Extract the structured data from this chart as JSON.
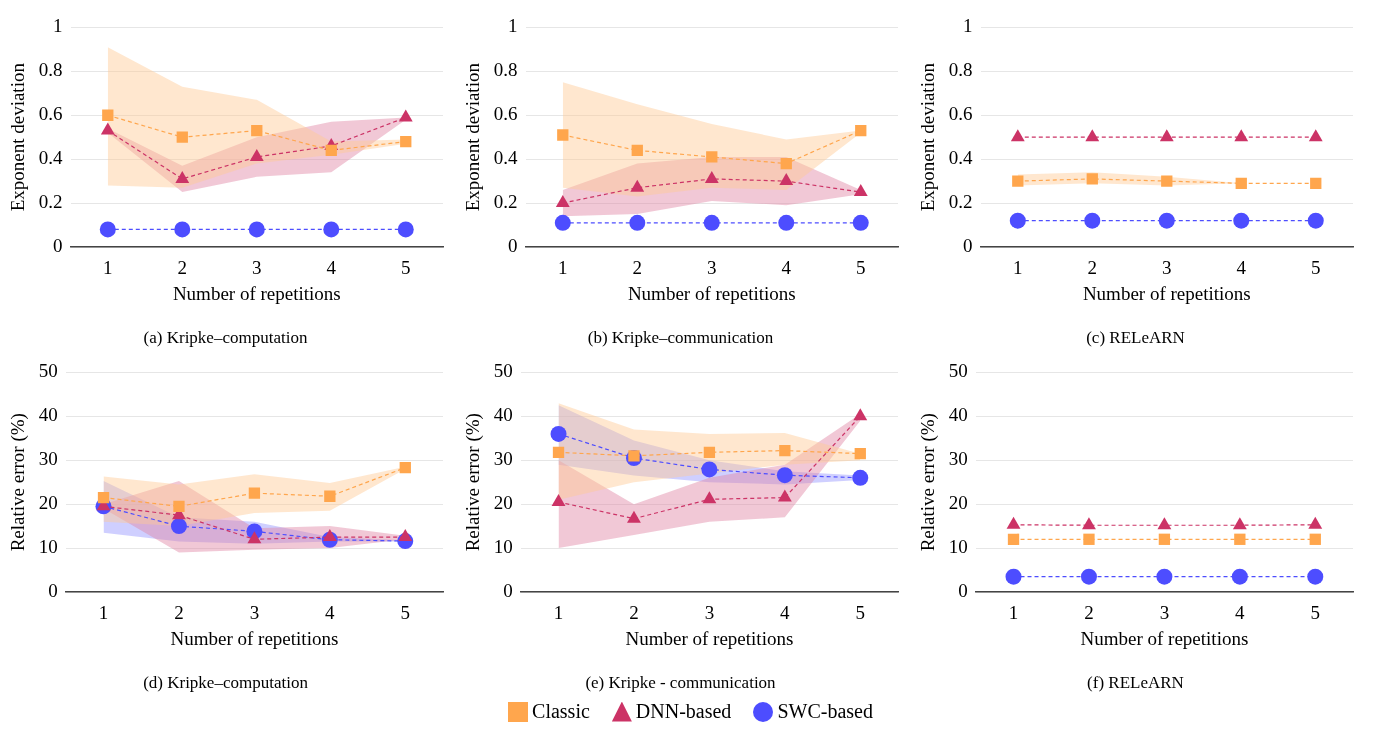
{
  "chart_data": [
    {
      "type": "line",
      "title": "(a) Kripke–computation",
      "xlabel": "Number of repetitions",
      "ylabel": "Exponent deviation",
      "categories": [
        "1",
        "2",
        "3",
        "4",
        "5"
      ],
      "ylim": [
        0,
        1
      ],
      "yticks": [
        0,
        0.2,
        0.4,
        0.6,
        0.8,
        1
      ],
      "grid": "y",
      "line_style": "dashed",
      "series": [
        {
          "color": "#ffa64d",
          "marker": "square",
          "values": [
            0.6,
            0.5,
            0.53,
            0.44,
            0.48
          ],
          "lower": [
            0.28,
            0.27,
            0.38,
            0.42,
            0.47
          ],
          "upper": [
            0.91,
            0.73,
            0.67,
            0.48,
            0.49
          ]
        },
        {
          "color": "#cc3366",
          "marker": "triangle",
          "values": [
            0.53,
            0.31,
            0.41,
            0.46,
            0.59
          ],
          "lower": [
            0.52,
            0.25,
            0.32,
            0.34,
            0.58
          ],
          "upper": [
            0.54,
            0.37,
            0.5,
            0.57,
            0.59
          ]
        },
        {
          "color": "#4d4dff",
          "marker": "circle",
          "values": [
            0.08,
            0.08,
            0.08,
            0.08,
            0.08
          ]
        }
      ]
    },
    {
      "type": "line",
      "title": "(b) Kripke–communication",
      "xlabel": "Number of repetitions",
      "ylabel": "Exponent deviation",
      "categories": [
        "1",
        "2",
        "3",
        "4",
        "5"
      ],
      "ylim": [
        0,
        1
      ],
      "yticks": [
        0,
        0.2,
        0.4,
        0.6,
        0.8,
        1
      ],
      "grid": "y",
      "line_style": "dashed",
      "series": [
        {
          "color": "#ffa64d",
          "marker": "square",
          "values": [
            0.51,
            0.44,
            0.41,
            0.38,
            0.53
          ],
          "lower": [
            0.27,
            0.23,
            0.27,
            0.26,
            0.52
          ],
          "upper": [
            0.75,
            0.65,
            0.56,
            0.49,
            0.53
          ]
        },
        {
          "color": "#cc3366",
          "marker": "triangle",
          "values": [
            0.2,
            0.27,
            0.31,
            0.3,
            0.25
          ],
          "lower": [
            0.14,
            0.15,
            0.21,
            0.19,
            0.24
          ],
          "upper": [
            0.26,
            0.38,
            0.41,
            0.41,
            0.26
          ]
        },
        {
          "color": "#4d4dff",
          "marker": "circle",
          "values": [
            0.11,
            0.11,
            0.11,
            0.11,
            0.11
          ]
        }
      ]
    },
    {
      "type": "line",
      "title": "(c) RELeARN",
      "xlabel": "Number of repetitions",
      "ylabel": "Exponent deviation",
      "categories": [
        "1",
        "2",
        "3",
        "4",
        "5"
      ],
      "ylim": [
        0,
        1
      ],
      "yticks": [
        0,
        0.2,
        0.4,
        0.6,
        0.8,
        1
      ],
      "grid": "y",
      "line_style": "dashed",
      "series": [
        {
          "color": "#ffa64d",
          "marker": "square",
          "values": [
            0.3,
            0.31,
            0.3,
            0.29,
            0.29
          ],
          "lower": [
            0.28,
            0.29,
            0.28,
            0.29,
            0.29
          ],
          "upper": [
            0.33,
            0.34,
            0.32,
            0.29,
            0.29
          ]
        },
        {
          "color": "#cc3366",
          "marker": "triangle",
          "values": [
            0.5,
            0.5,
            0.5,
            0.5,
            0.5
          ]
        },
        {
          "color": "#4d4dff",
          "marker": "circle",
          "values": [
            0.12,
            0.12,
            0.12,
            0.12,
            0.12
          ]
        }
      ]
    },
    {
      "type": "line",
      "title": "(d) Kripke–computation",
      "xlabel": "Number of repetitions",
      "ylabel": "Relative error (%)",
      "categories": [
        "1",
        "2",
        "3",
        "4",
        "5"
      ],
      "ylim": [
        0,
        50
      ],
      "yticks": [
        0,
        10,
        20,
        30,
        40,
        50
      ],
      "grid": "y",
      "line_style": "dashed",
      "series": [
        {
          "color": "#ffa64d",
          "marker": "square",
          "values": [
            21.5,
            19.5,
            22.5,
            21.8,
            28.3
          ],
          "lower": [
            16,
            15,
            18,
            18.5,
            28
          ],
          "upper": [
            26.3,
            24.5,
            26.8,
            24.8,
            28.5
          ]
        },
        {
          "color": "#cc3366",
          "marker": "triangle",
          "values": [
            19.5,
            17.5,
            12,
            12.5,
            12.5
          ],
          "lower": [
            19,
            9,
            9.6,
            10,
            12
          ],
          "upper": [
            20,
            25.3,
            14.5,
            15,
            12.8
          ]
        },
        {
          "color": "#4d4dff",
          "marker": "circle",
          "values": [
            19.5,
            15,
            13.8,
            11.9,
            11.6
          ],
          "lower": [
            13.5,
            11.5,
            11,
            11.5,
            11.5
          ],
          "upper": [
            25.3,
            17,
            16,
            12.5,
            11.8
          ]
        }
      ]
    },
    {
      "type": "line",
      "title": "(e) Kripke - communication",
      "xlabel": "Number of repetitions",
      "ylabel": "Relative error (%)",
      "categories": [
        "1",
        "2",
        "3",
        "4",
        "5"
      ],
      "ylim": [
        0,
        50
      ],
      "yticks": [
        0,
        10,
        20,
        30,
        40,
        50
      ],
      "grid": "y",
      "line_style": "dashed",
      "legend": "bottom",
      "series": [
        {
          "name": "Classic",
          "color": "#ffa64d",
          "marker": "square",
          "values": [
            31.8,
            31,
            31.8,
            32.2,
            31.5
          ],
          "lower": [
            21,
            25,
            27,
            29,
            30
          ],
          "upper": [
            43,
            37,
            36,
            36.2,
            31.5
          ]
        },
        {
          "name": "DNN-based",
          "color": "#cc3366",
          "marker": "triangle",
          "values": [
            20.5,
            16.7,
            21.1,
            21.5,
            40
          ],
          "lower": [
            10,
            13,
            16,
            17,
            39
          ],
          "upper": [
            30,
            20,
            26,
            29,
            40.5
          ]
        },
        {
          "name": "SWC-based",
          "color": "#4d4dff",
          "marker": "circle",
          "values": [
            36,
            30.5,
            27.9,
            26.6,
            26
          ],
          "lower": [
            29,
            26.5,
            25,
            24.5,
            25.5
          ],
          "upper": [
            42.5,
            34.5,
            30,
            27.5,
            26.5
          ]
        }
      ]
    },
    {
      "type": "line",
      "title": "(f) RELeARN",
      "xlabel": "Number of repetitions",
      "ylabel": "Relative error (%)",
      "categories": [
        "1",
        "2",
        "3",
        "4",
        "5"
      ],
      "ylim": [
        0,
        50
      ],
      "yticks": [
        0,
        10,
        20,
        30,
        40,
        50
      ],
      "grid": "y",
      "line_style": "dashed",
      "series": [
        {
          "color": "#ffa64d",
          "marker": "square",
          "values": [
            12,
            12,
            12,
            12,
            12
          ]
        },
        {
          "color": "#cc3366",
          "marker": "triangle",
          "values": [
            15.3,
            15.2,
            15.2,
            15.2,
            15.3
          ]
        },
        {
          "color": "#4d4dff",
          "marker": "circle",
          "values": [
            3.5,
            3.5,
            3.5,
            3.5,
            3.5
          ]
        }
      ]
    }
  ]
}
